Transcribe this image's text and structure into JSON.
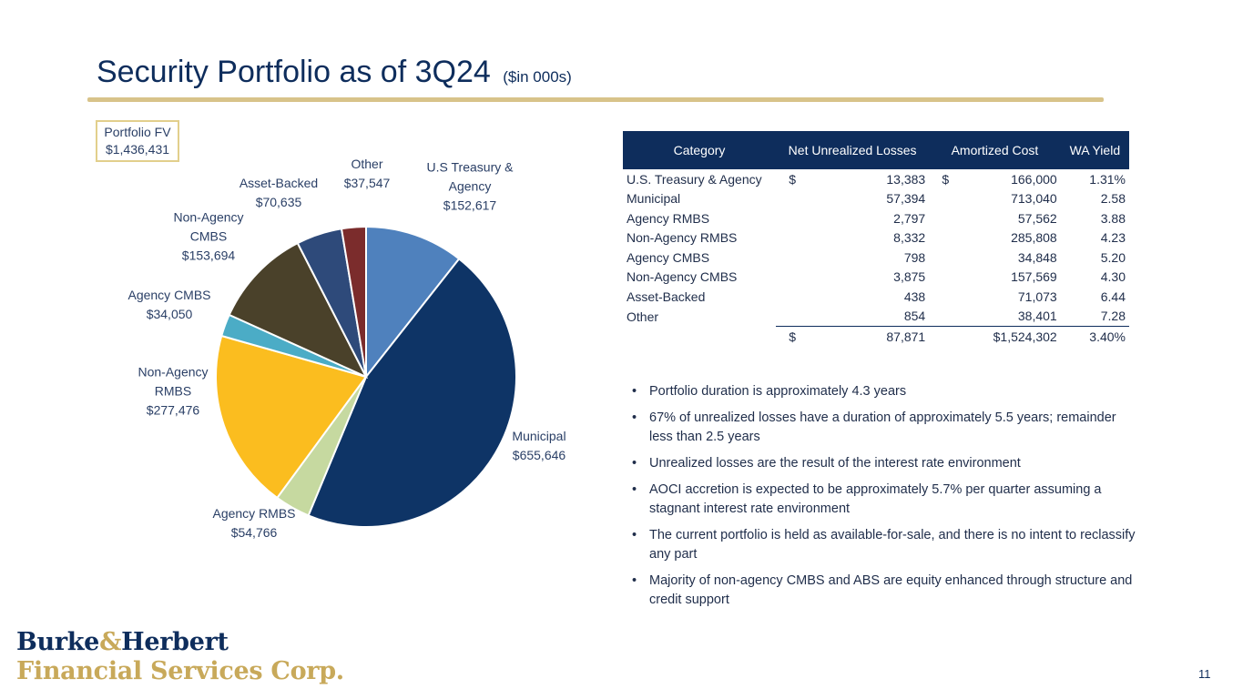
{
  "header": {
    "title": "Security Portfolio as of 3Q24",
    "subtitle": "($in 000s)"
  },
  "portfolio_fv": {
    "label": "Portfolio FV",
    "value": "$1,436,431"
  },
  "colors": {
    "navy": "#0e2d5c",
    "gold": "#d8c38a"
  },
  "chart_data": {
    "type": "pie",
    "title": "",
    "slices": [
      {
        "name_lines": [
          "U.S Treasury &",
          "Agency"
        ],
        "label": "$152,617",
        "value": 152617,
        "color": "#4f81bd"
      },
      {
        "name_lines": [
          "Municipal"
        ],
        "label": "$655,646",
        "value": 655646,
        "color": "#0e3466"
      },
      {
        "name_lines": [
          "Agency RMBS"
        ],
        "label": "$54,766",
        "value": 54766,
        "color": "#c6d9a0"
      },
      {
        "name_lines": [
          "Non-Agency",
          "RMBS"
        ],
        "label": "$277,476",
        "value": 277476,
        "color": "#fbbd1f"
      },
      {
        "name_lines": [
          "Agency CMBS"
        ],
        "label": "$34,050",
        "value": 34050,
        "color": "#4bacc6"
      },
      {
        "name_lines": [
          "Non-Agency",
          "CMBS"
        ],
        "label": "$153,694",
        "value": 153694,
        "color": "#4a412a"
      },
      {
        "name_lines": [
          "Asset-Backed"
        ],
        "label": "$70,635",
        "value": 70635,
        "color": "#2e4a7a"
      },
      {
        "name_lines": [
          "Other"
        ],
        "label": "$37,547",
        "value": 37547,
        "color": "#7b2c2c"
      }
    ]
  },
  "table": {
    "headers": [
      "Category",
      "Net Unrealized Losses",
      "Amortized Cost",
      "WA Yield"
    ],
    "rows": [
      {
        "category": "U.S. Treasury & Agency",
        "nul_sym": "$",
        "nul": "13,383",
        "cost_sym": "$",
        "cost": "166,000",
        "yield": "1.31%"
      },
      {
        "category": "Municipal",
        "nul_sym": "",
        "nul": "57,394",
        "cost_sym": "",
        "cost": "713,040",
        "yield": "2.58"
      },
      {
        "category": "Agency RMBS",
        "nul_sym": "",
        "nul": "2,797",
        "cost_sym": "",
        "cost": "57,562",
        "yield": "3.88"
      },
      {
        "category": "Non-Agency RMBS",
        "nul_sym": "",
        "nul": "8,332",
        "cost_sym": "",
        "cost": "285,808",
        "yield": "4.23"
      },
      {
        "category": "Agency CMBS",
        "nul_sym": "",
        "nul": "798",
        "cost_sym": "",
        "cost": "34,848",
        "yield": "5.20"
      },
      {
        "category": "Non-Agency CMBS",
        "nul_sym": "",
        "nul": "3,875",
        "cost_sym": "",
        "cost": "157,569",
        "yield": "4.30"
      },
      {
        "category": "Asset-Backed",
        "nul_sym": "",
        "nul": "438",
        "cost_sym": "",
        "cost": "71,073",
        "yield": "6.44"
      },
      {
        "category": "Other",
        "nul_sym": "",
        "nul": "854",
        "cost_sym": "",
        "cost": "38,401",
        "yield": "7.28"
      }
    ],
    "total": {
      "nul_sym": "$",
      "nul": "87,871",
      "cost": "$1,524,302",
      "yield": "3.40%"
    }
  },
  "bullets": [
    "Portfolio duration is approximately 4.3 years",
    "67% of unrealized losses have a duration of approximately 5.5 years; remainder less than 2.5 years",
    "Unrealized losses are the result of the interest rate environment",
    "AOCI accretion is expected to be approximately 5.7% per quarter assuming a stagnant interest rate environment",
    "The current portfolio is held as available-for-sale, and there is no intent to reclassify any part",
    "Majority of non-agency CMBS and ABS are equity enhanced through structure and credit support"
  ],
  "logo": {
    "line1_a": "Burke",
    "line1_amp": "&",
    "line1_b": "Herbert",
    "line2": "Financial Services Corp."
  },
  "page_number": "11"
}
